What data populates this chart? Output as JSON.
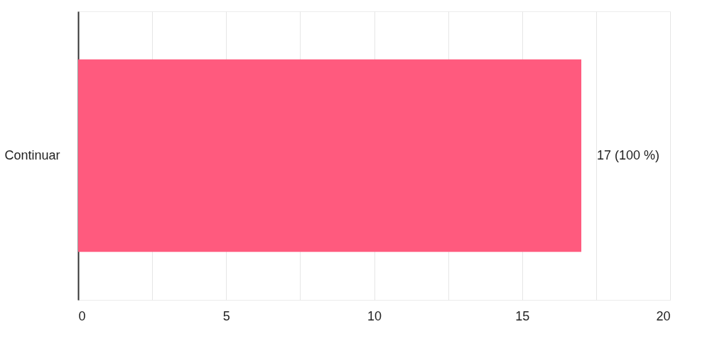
{
  "chart_data": {
    "type": "bar",
    "orientation": "horizontal",
    "categories": [
      "Continuar"
    ],
    "values": [
      17
    ],
    "color": "#ff5a7e",
    "value_labels": [
      "17 (100 %)"
    ],
    "xlim": [
      0,
      20
    ],
    "xticks": [
      0,
      {
        "value": 2.5,
        "label": null
      },
      5,
      {
        "value": 7.5,
        "label": null
      },
      10,
      {
        "value": 12.5,
        "label": null
      },
      15,
      {
        "value": 17.5,
        "label": null
      },
      20
    ],
    "grid": "x"
  }
}
